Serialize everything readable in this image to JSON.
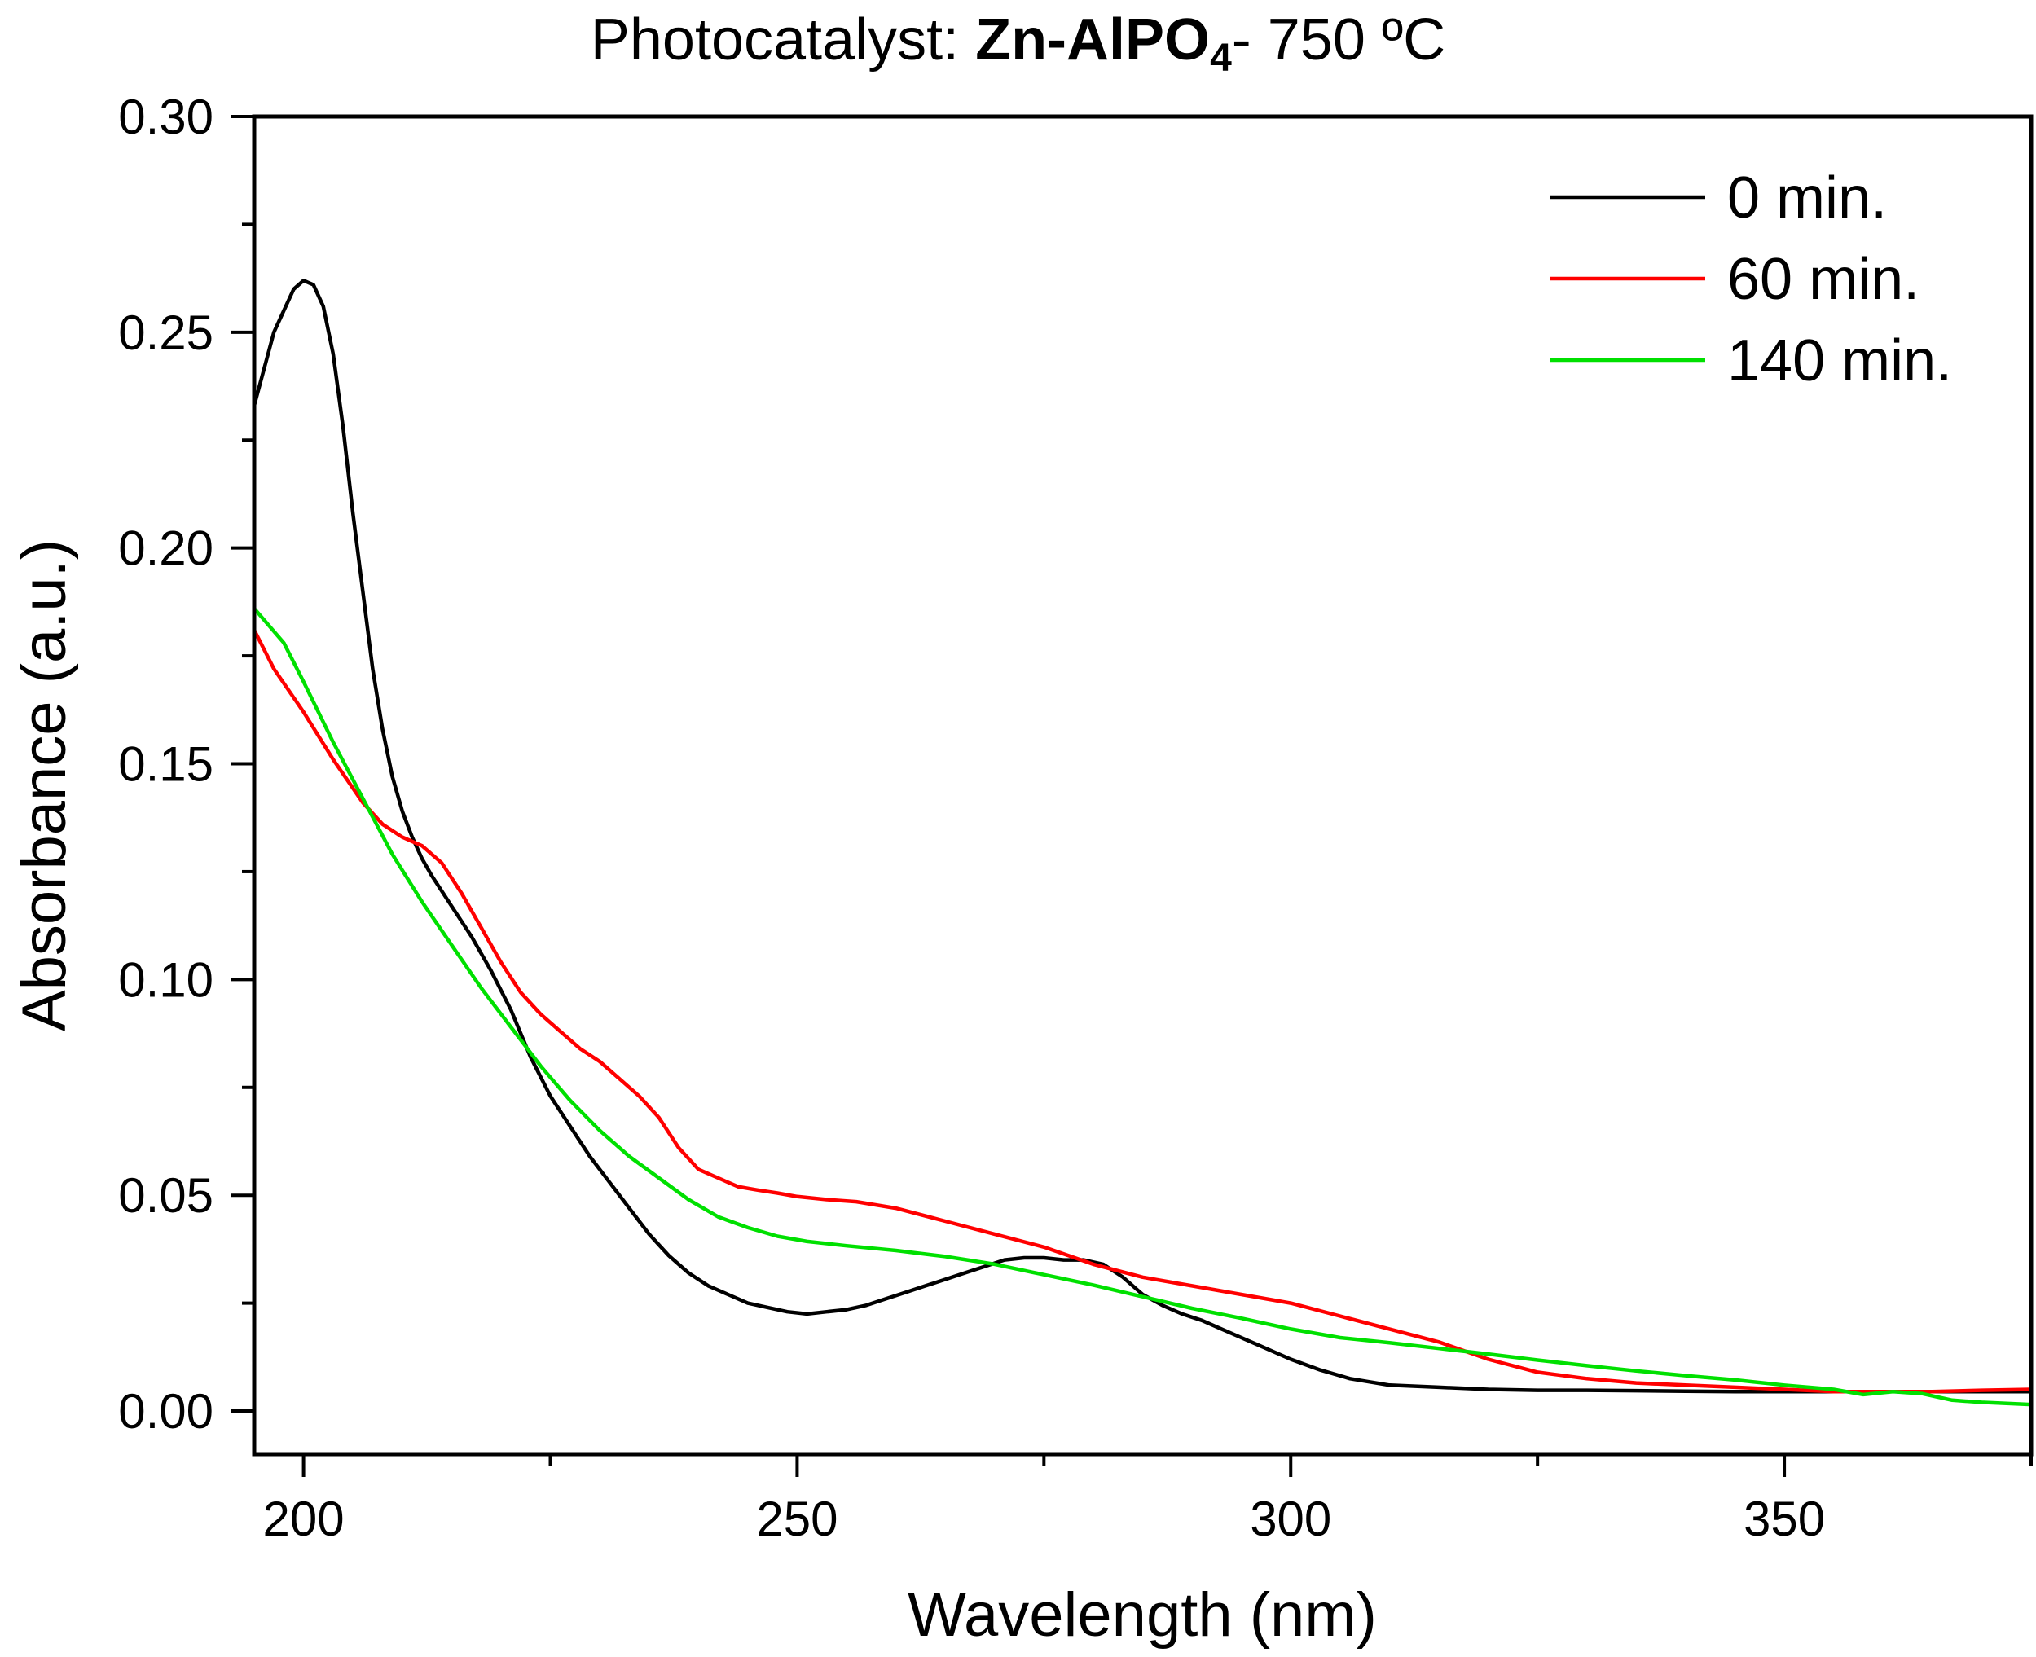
{
  "chart_data": {
    "type": "line",
    "title": {
      "prefix": "Photocatalyst: ",
      "bold": "Zn-AlPO",
      "subscript": "4",
      "suffix": "- 750 ºC"
    },
    "xlabel": "Wavelength (nm)",
    "ylabel": "Absorbance (a.u.)",
    "xlim": [
      195,
      375
    ],
    "ylim": [
      -0.01,
      0.3
    ],
    "x_ticks": [
      200,
      250,
      300,
      350
    ],
    "x_tick_labels": [
      "200",
      "250",
      "300",
      "350"
    ],
    "x_minor_ticks": [
      225,
      275,
      325,
      375
    ],
    "y_ticks": [
      0.0,
      0.05,
      0.1,
      0.15,
      0.2,
      0.25,
      0.3
    ],
    "y_tick_labels": [
      "0.00",
      "0.05",
      "0.10",
      "0.15",
      "0.20",
      "0.25",
      "0.30"
    ],
    "y_minor_ticks": [
      0.025,
      0.075,
      0.125,
      0.175,
      0.225,
      0.275
    ],
    "grid": false,
    "legend_position": "top-right",
    "series": [
      {
        "name": "0 min.",
        "color": "#000000",
        "x": [
          195,
          197,
          199,
          200,
          201,
          202,
          203,
          204,
          205,
          206,
          207,
          208,
          209,
          210,
          211,
          212,
          213,
          215,
          217,
          219,
          221,
          223,
          225,
          227,
          229,
          231,
          233,
          235,
          237,
          239,
          241,
          243,
          245,
          247,
          249,
          251,
          253,
          255,
          257,
          259,
          261,
          263,
          265,
          267,
          269,
          271,
          273,
          275,
          277,
          279,
          281,
          283,
          285,
          287,
          289,
          291,
          293,
          295,
          297,
          300,
          303,
          306,
          310,
          315,
          320,
          325,
          330,
          335,
          340,
          345,
          350,
          355,
          360,
          365,
          370,
          375
        ],
        "y": [
          0.233,
          0.25,
          0.26,
          0.262,
          0.261,
          0.256,
          0.245,
          0.228,
          0.208,
          0.19,
          0.172,
          0.158,
          0.147,
          0.139,
          0.133,
          0.128,
          0.124,
          0.117,
          0.11,
          0.102,
          0.093,
          0.082,
          0.073,
          0.066,
          0.059,
          0.053,
          0.047,
          0.041,
          0.036,
          0.032,
          0.029,
          0.027,
          0.025,
          0.024,
          0.023,
          0.0225,
          0.023,
          0.0235,
          0.0245,
          0.026,
          0.0275,
          0.029,
          0.0305,
          0.032,
          0.0335,
          0.035,
          0.0355,
          0.0355,
          0.035,
          0.035,
          0.034,
          0.031,
          0.027,
          0.0245,
          0.0225,
          0.021,
          0.019,
          0.017,
          0.015,
          0.012,
          0.0095,
          0.0075,
          0.006,
          0.0055,
          0.005,
          0.0048,
          0.0048,
          0.0047,
          0.0046,
          0.0045,
          0.0045,
          0.0045,
          0.0045,
          0.0045,
          0.0045,
          0.0045
        ]
      },
      {
        "name": "60 min.",
        "color": "#ff0000",
        "x": [
          195,
          197,
          200,
          203,
          206,
          208,
          210,
          212,
          214,
          216,
          218,
          220,
          222,
          224,
          226,
          228,
          230,
          232,
          234,
          236,
          238,
          240,
          242,
          244,
          246,
          248,
          250,
          253,
          256,
          260,
          265,
          270,
          275,
          280,
          285,
          290,
          295,
          300,
          305,
          310,
          315,
          320,
          325,
          330,
          335,
          340,
          345,
          350,
          355,
          360,
          365,
          370,
          375
        ],
        "y": [
          0.181,
          0.172,
          0.162,
          0.151,
          0.141,
          0.136,
          0.133,
          0.131,
          0.127,
          0.12,
          0.112,
          0.104,
          0.097,
          0.092,
          0.088,
          0.084,
          0.081,
          0.077,
          0.073,
          0.068,
          0.061,
          0.056,
          0.054,
          0.052,
          0.0512,
          0.0505,
          0.0497,
          0.049,
          0.0485,
          0.047,
          0.044,
          0.041,
          0.038,
          0.034,
          0.031,
          0.029,
          0.027,
          0.025,
          0.022,
          0.019,
          0.016,
          0.012,
          0.009,
          0.0075,
          0.0065,
          0.006,
          0.0055,
          0.005,
          0.0045,
          0.0045,
          0.0045,
          0.0048,
          0.005
        ]
      },
      {
        "name": "140 min.",
        "color": "#00e000",
        "x": [
          195,
          198,
          200,
          203,
          206,
          209,
          212,
          215,
          218,
          221,
          224,
          227,
          230,
          233,
          236,
          239,
          242,
          245,
          248,
          251,
          255,
          260,
          265,
          270,
          275,
          280,
          285,
          290,
          295,
          300,
          305,
          310,
          315,
          320,
          325,
          330,
          335,
          340,
          345,
          350,
          355,
          358,
          361,
          364,
          367,
          370,
          375
        ],
        "y": [
          0.186,
          0.178,
          0.169,
          0.155,
          0.142,
          0.129,
          0.118,
          0.108,
          0.098,
          0.089,
          0.08,
          0.072,
          0.065,
          0.059,
          0.054,
          0.049,
          0.045,
          0.0425,
          0.0405,
          0.0393,
          0.0383,
          0.0372,
          0.0358,
          0.034,
          0.0316,
          0.0292,
          0.0265,
          0.0238,
          0.0215,
          0.019,
          0.017,
          0.0158,
          0.0145,
          0.0132,
          0.0118,
          0.0105,
          0.0093,
          0.0082,
          0.0072,
          0.006,
          0.005,
          0.0038,
          0.0045,
          0.004,
          0.0025,
          0.002,
          0.0015
        ]
      }
    ]
  }
}
